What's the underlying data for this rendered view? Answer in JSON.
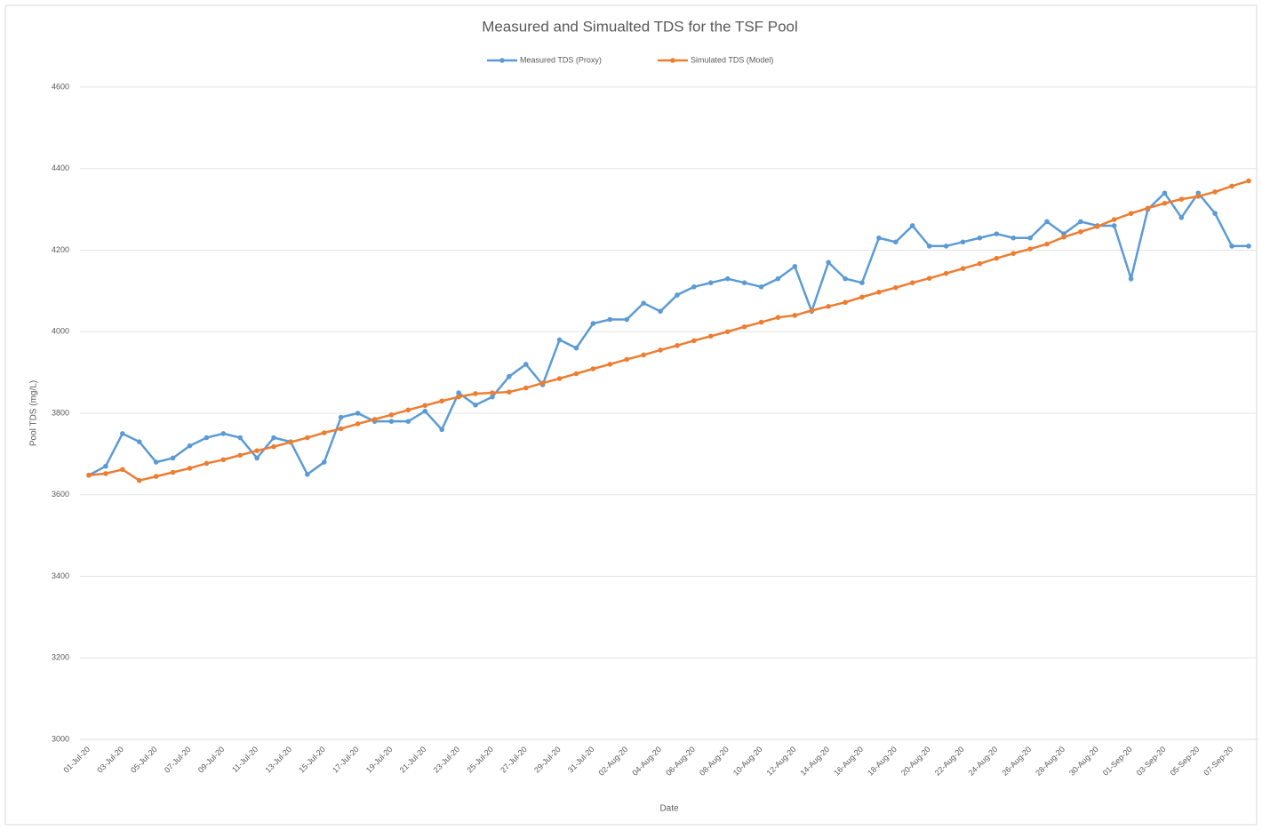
{
  "chart_data": {
    "type": "line",
    "title": "Measured and Simualted TDS for the TSF Pool",
    "x_label": "Date",
    "y_label": "Pool TDS (mg/L)",
    "categories": [
      "01-Jul-20",
      null,
      "03-Jul-20",
      null,
      "05-Jul-20",
      null,
      "07-Jul-20",
      null,
      "09-Jul-20",
      null,
      "11-Jul-20",
      null,
      "13-Jul-20",
      null,
      "15-Jul-20",
      null,
      "17-Jul-20",
      null,
      "19-Jul-20",
      null,
      "21-Jul-20",
      null,
      "23-Jul-20",
      null,
      "25-Jul-20",
      null,
      "27-Jul-20",
      null,
      "29-Jul-20",
      null,
      "31-Jul-20",
      null,
      "02-Aug-20",
      null,
      "04-Aug-20",
      null,
      "06-Aug-20",
      null,
      "08-Aug-20",
      null,
      "10-Aug-20",
      null,
      "12-Aug-20",
      null,
      "14-Aug-20",
      null,
      "16-Aug-20",
      null,
      "18-Aug-20",
      null,
      "20-Aug-20",
      null,
      "22-Aug-20",
      null,
      "24-Aug-20",
      null,
      "26-Aug-20",
      null,
      "28-Aug-20",
      null,
      "30-Aug-20",
      null,
      "01-Sep-20",
      null,
      "03-Sep-20",
      null,
      "05-Sep-20",
      null,
      "07-Sep-20",
      null
    ],
    "series": [
      {
        "name": "Measured TDS (Proxy)",
        "color": "#5b9bd5",
        "values": [
          3648,
          3670,
          3750,
          3730,
          3680,
          3690,
          3720,
          3740,
          3750,
          3740,
          3690,
          3740,
          3730,
          3650,
          3680,
          3790,
          3800,
          3780,
          3780,
          3780,
          3805,
          3760,
          3850,
          3820,
          3840,
          3890,
          3920,
          3870,
          3980,
          3960,
          4020,
          4030,
          4030,
          4070,
          4050,
          4090,
          4110,
          4120,
          4130,
          4120,
          4110,
          4130,
          4160,
          4050,
          4170,
          4130,
          4120,
          4230,
          4220,
          4260,
          4210,
          4210,
          4220,
          4230,
          4240,
          4230,
          4230,
          4270,
          4240,
          4270,
          4260,
          4260,
          4130,
          4300,
          4340,
          4280,
          4340,
          4290,
          4210,
          4210
        ]
      },
      {
        "name": "Simulated TDS (Model)",
        "color": "#ed7d31",
        "values": [
          3648,
          3652,
          3662,
          3635,
          3645,
          3655,
          3665,
          3677,
          3686,
          3697,
          3708,
          3718,
          3729,
          3740,
          3752,
          3762,
          3774,
          3785,
          3796,
          3808,
          3819,
          3830,
          3840,
          3848,
          3850,
          3852,
          3862,
          3874,
          3885,
          3897,
          3909,
          3920,
          3932,
          3943,
          3955,
          3966,
          3978,
          3989,
          4000,
          4012,
          4023,
          4035,
          4040,
          4052,
          4062,
          4072,
          4085,
          4097,
          4108,
          4120,
          4131,
          4143,
          4155,
          4167,
          4180,
          4192,
          4203,
          4215,
          4232,
          4245,
          4258,
          4275,
          4290,
          4303,
          4315,
          4325,
          4332,
          4343,
          4357,
          4370
        ]
      }
    ],
    "ylim": [
      3000,
      4600
    ],
    "yticks": [
      3000,
      3200,
      3400,
      3600,
      3800,
      4000,
      4200,
      4400,
      4600
    ],
    "grid": true,
    "legend": "top"
  }
}
